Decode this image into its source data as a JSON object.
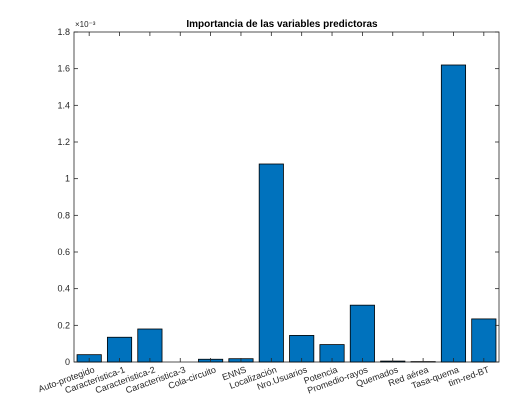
{
  "chart_data": {
    "type": "bar",
    "title": "Importancia de las variables predictoras",
    "axis_multiplier": "×10⁻³",
    "xlabel": "",
    "ylabel": "",
    "categories": [
      "Auto-protegido",
      "Caracteristica-1",
      "Caracteristica-2",
      "Caracteristica-3",
      "Cola-circuito",
      "ENNS",
      "Localización",
      "Nro.Usuarios",
      "Potencia",
      "Promedio-rayos",
      "Quemados",
      "Red aérea",
      "Tasa-quema",
      "tim-red-BT"
    ],
    "values": [
      4e-05,
      0.000135,
      0.00018,
      0.0,
      1.5e-05,
      1.8e-05,
      0.00108,
      0.000145,
      9.5e-05,
      0.00031,
      5e-06,
      2e-06,
      0.00162,
      0.000235
    ],
    "ylim": [
      0,
      0.0018
    ],
    "yticks": [
      0,
      0.0002,
      0.0004,
      0.0006,
      0.0008,
      0.001,
      0.0012,
      0.0014,
      0.0016,
      0.0018
    ],
    "ytick_labels": [
      "0",
      "0.2",
      "0.4",
      "0.6",
      "0.8",
      "1",
      "1.2",
      "1.4",
      "1.6",
      "1.8"
    ],
    "grid": false,
    "bar_color": "#0072BD",
    "edge_color": "#000000"
  }
}
